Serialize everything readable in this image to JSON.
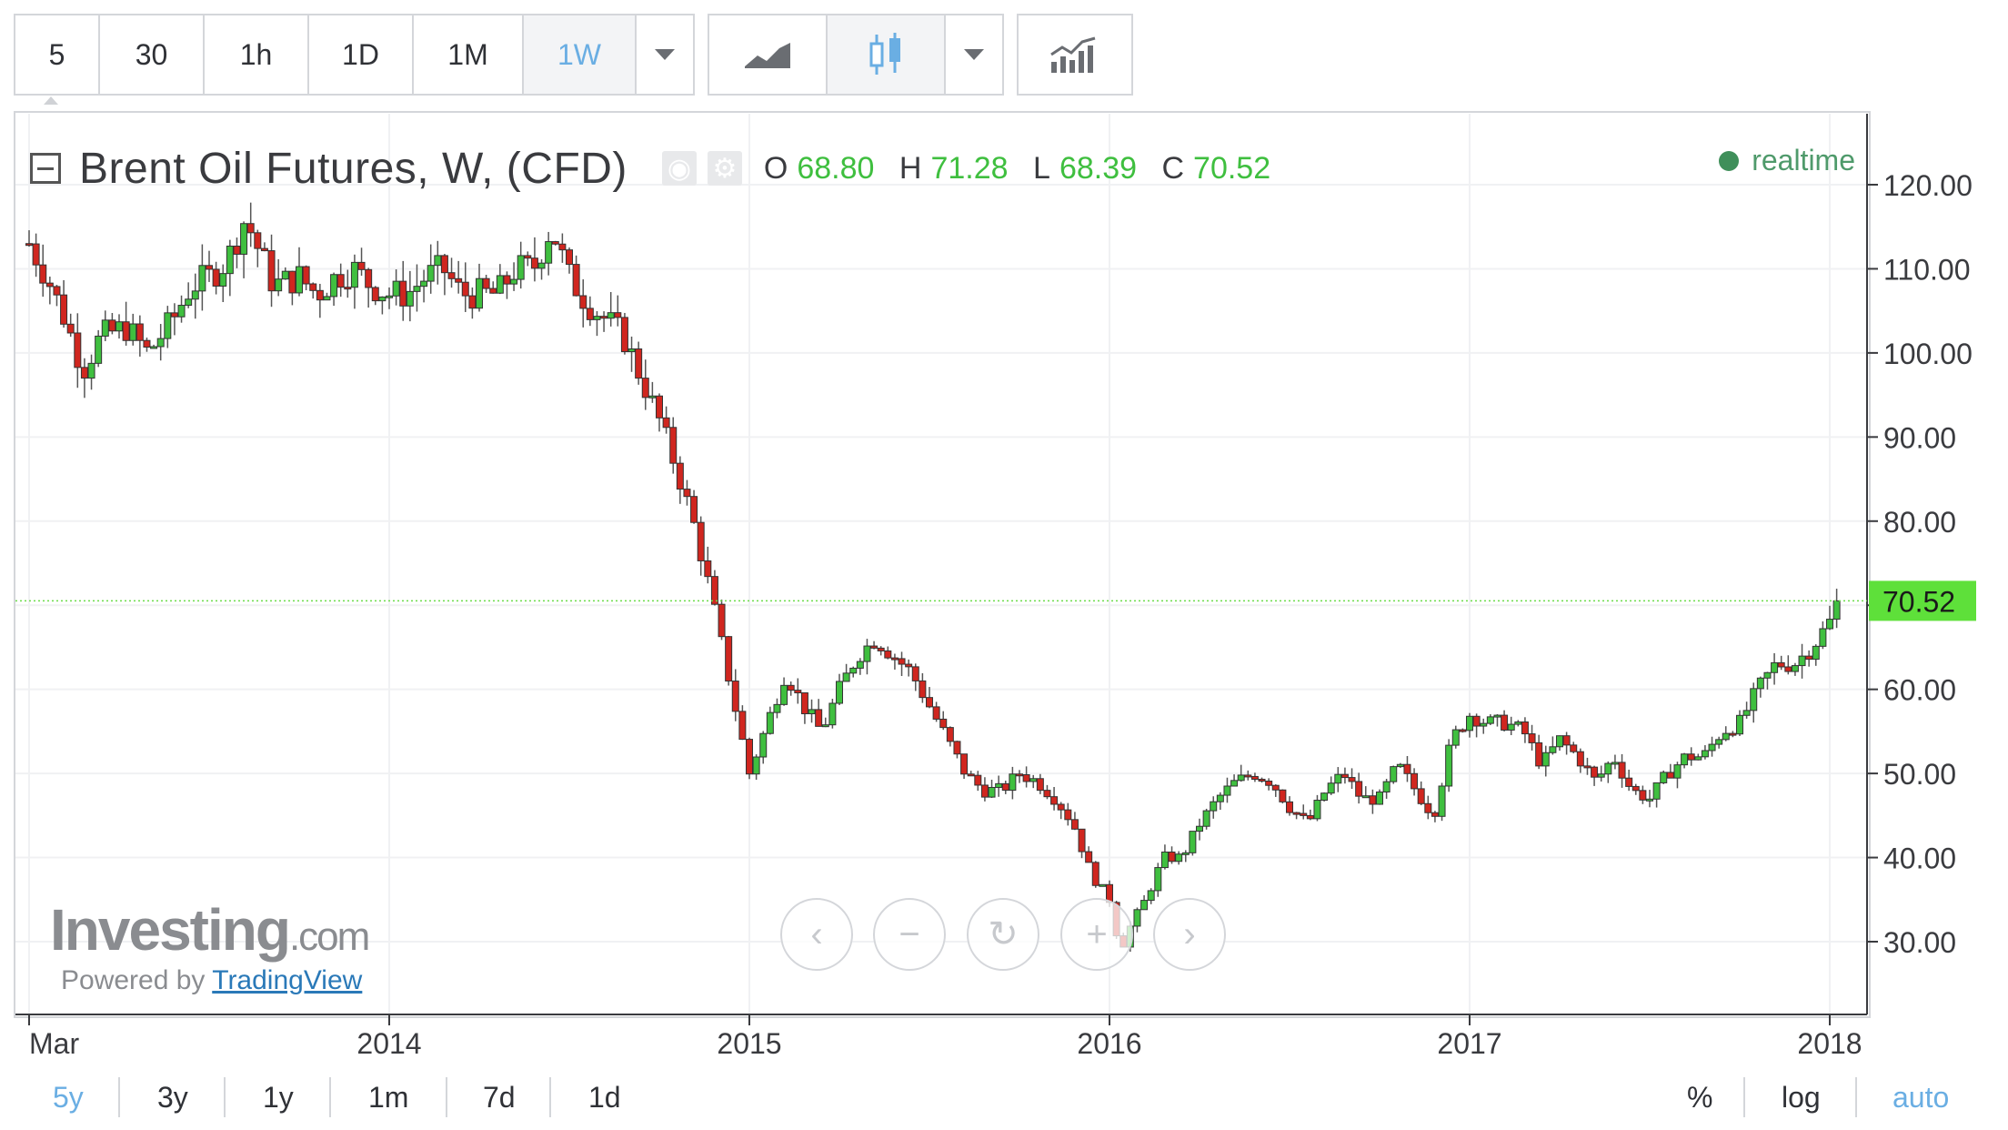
{
  "toolbar": {
    "intervals": [
      "5",
      "30",
      "1h",
      "1D",
      "1M",
      "1W"
    ],
    "active_interval": "1W",
    "chart_types": [
      "line-chart-icon",
      "candlestick-icon"
    ],
    "indicators_icon": "indicators-icon"
  },
  "legend": {
    "title": "Brent Oil Futures, W, (CFD)",
    "o_label": "O",
    "o": "68.80",
    "h_label": "H",
    "h": "71.28",
    "l_label": "L",
    "l": "68.39",
    "c_label": "C",
    "c": "70.52",
    "status": "realtime"
  },
  "watermark": {
    "brand": "Investing",
    "brand_suffix": ".com",
    "powered_prefix": "Powered by",
    "powered_link": "TradingView"
  },
  "ranges": [
    "5y",
    "3y",
    "1y",
    "1m",
    "7d",
    "1d"
  ],
  "active_range": "5y",
  "scale_options": [
    "%",
    "log",
    "auto"
  ],
  "active_scale": "auto",
  "colors": {
    "up": "#3fbf3f",
    "down": "#d0261f",
    "accent": "#6aaee3",
    "last_price_bg": "#5ee03a"
  },
  "chart_data": {
    "type": "candlestick",
    "title": "Brent Oil Futures, W, (CFD)",
    "y_ticks": [
      "120.00",
      "110.00",
      "100.00",
      "90.00",
      "80.00",
      "70.00",
      "60.00",
      "50.00",
      "40.00",
      "30.00"
    ],
    "ylim": [
      23,
      130
    ],
    "x_ticks": [
      {
        "label": "Mar",
        "t": 2013.0
      },
      {
        "label": "2014",
        "t": 2014.0
      },
      {
        "label": "2015",
        "t": 2015.0
      },
      {
        "label": "2016",
        "t": 2016.0
      },
      {
        "label": "2017",
        "t": 2017.0
      },
      {
        "label": "2018",
        "t": 2018.0
      }
    ],
    "xlim": [
      2013.0,
      2018.25
    ],
    "last_price": "70.52",
    "last_value": 70.52,
    "series": [
      {
        "name": "Brent Oil Futures, W, (CFD)",
        "closes": [
          [
            2013.0,
            113
          ],
          [
            2013.05,
            109
          ],
          [
            2013.1,
            104
          ],
          [
            2013.15,
            98
          ],
          [
            2013.2,
            102
          ],
          [
            2013.27,
            103
          ],
          [
            2013.33,
            100
          ],
          [
            2013.4,
            104
          ],
          [
            2013.45,
            108
          ],
          [
            2013.5,
            109
          ],
          [
            2013.55,
            111
          ],
          [
            2013.6,
            116
          ],
          [
            2013.63,
            113
          ],
          [
            2013.68,
            108
          ],
          [
            2013.75,
            109
          ],
          [
            2013.8,
            107
          ],
          [
            2013.85,
            109
          ],
          [
            2013.9,
            110
          ],
          [
            2013.95,
            108
          ],
          [
            2014.0,
            107
          ],
          [
            2014.05,
            107
          ],
          [
            2014.1,
            109
          ],
          [
            2014.15,
            110
          ],
          [
            2014.2,
            107
          ],
          [
            2014.25,
            107
          ],
          [
            2014.3,
            107
          ],
          [
            2014.35,
            110
          ],
          [
            2014.4,
            110
          ],
          [
            2014.45,
            115
          ],
          [
            2014.5,
            109
          ],
          [
            2014.55,
            106
          ],
          [
            2014.6,
            104
          ],
          [
            2014.65,
            102
          ],
          [
            2014.7,
            97
          ],
          [
            2014.75,
            92
          ],
          [
            2014.8,
            86
          ],
          [
            2014.85,
            79
          ],
          [
            2014.9,
            70
          ],
          [
            2014.95,
            60
          ],
          [
            2015.0,
            50
          ],
          [
            2015.05,
            56
          ],
          [
            2015.1,
            62
          ],
          [
            2015.15,
            58
          ],
          [
            2015.2,
            55
          ],
          [
            2015.25,
            60
          ],
          [
            2015.3,
            64
          ],
          [
            2015.35,
            66
          ],
          [
            2015.4,
            64
          ],
          [
            2015.45,
            62
          ],
          [
            2015.5,
            58
          ],
          [
            2015.55,
            54
          ],
          [
            2015.6,
            50
          ],
          [
            2015.65,
            48
          ],
          [
            2015.7,
            48
          ],
          [
            2015.75,
            50
          ],
          [
            2015.8,
            49
          ],
          [
            2015.85,
            47
          ],
          [
            2015.9,
            44
          ],
          [
            2015.95,
            38
          ],
          [
            2016.0,
            35
          ],
          [
            2016.03,
            29
          ],
          [
            2016.06,
            32
          ],
          [
            2016.1,
            35
          ],
          [
            2016.15,
            40
          ],
          [
            2016.2,
            40
          ],
          [
            2016.25,
            44
          ],
          [
            2016.3,
            47
          ],
          [
            2016.35,
            49
          ],
          [
            2016.4,
            50
          ],
          [
            2016.45,
            49
          ],
          [
            2016.5,
            46
          ],
          [
            2016.55,
            44
          ],
          [
            2016.6,
            48
          ],
          [
            2016.65,
            50
          ],
          [
            2016.7,
            47
          ],
          [
            2016.75,
            47
          ],
          [
            2016.8,
            51
          ],
          [
            2016.85,
            48
          ],
          [
            2016.9,
            45
          ],
          [
            2016.95,
            54
          ],
          [
            2017.0,
            57
          ],
          [
            2017.05,
            56
          ],
          [
            2017.1,
            56
          ],
          [
            2017.15,
            55
          ],
          [
            2017.2,
            51
          ],
          [
            2017.25,
            54
          ],
          [
            2017.3,
            52
          ],
          [
            2017.35,
            49
          ],
          [
            2017.4,
            52
          ],
          [
            2017.45,
            48
          ],
          [
            2017.5,
            47
          ],
          [
            2017.55,
            50
          ],
          [
            2017.6,
            52
          ],
          [
            2017.65,
            52
          ],
          [
            2017.7,
            55
          ],
          [
            2017.75,
            56
          ],
          [
            2017.8,
            60
          ],
          [
            2017.85,
            63
          ],
          [
            2017.9,
            63
          ],
          [
            2017.95,
            65
          ],
          [
            2018.0,
            68
          ],
          [
            2018.03,
            70.52
          ]
        ]
      }
    ]
  }
}
